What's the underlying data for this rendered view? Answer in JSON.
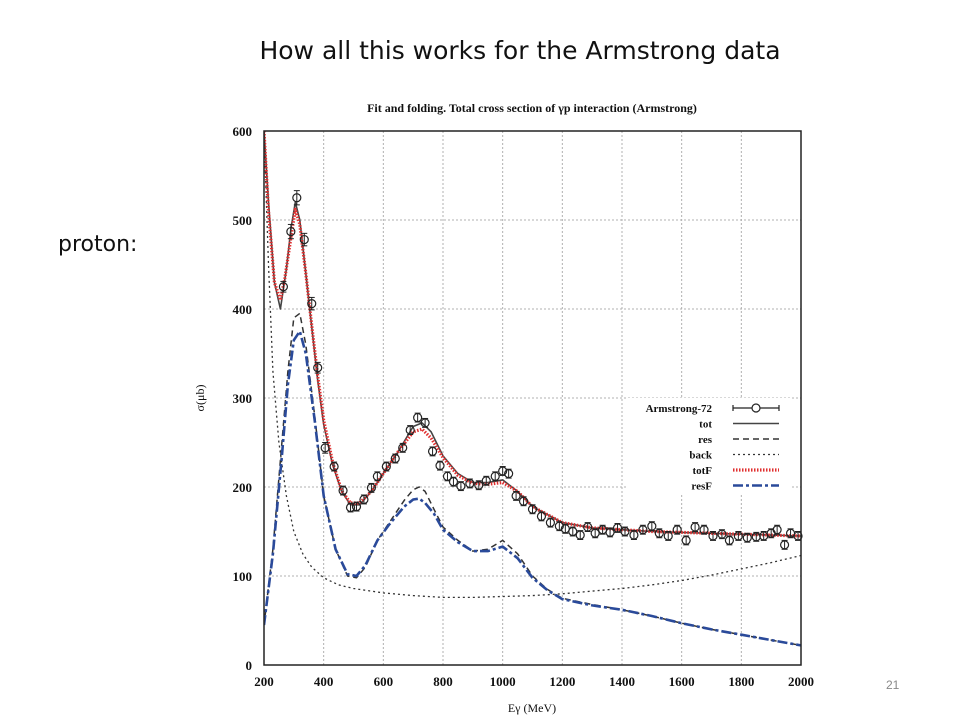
{
  "slide": {
    "title": "How all this works for the Armstrong data",
    "side_label": "proton:",
    "page_number": "21"
  },
  "chart_data": {
    "type": "line",
    "title": "Fit and folding. Total cross section of γp interaction (Armstrong)",
    "xlabel": "Eγ (MeV)",
    "ylabel": "σ(μb)",
    "xlim": [
      200,
      2000
    ],
    "ylim": [
      0,
      600
    ],
    "xticks": [
      200,
      400,
      600,
      800,
      1000,
      1200,
      1400,
      1600,
      1800,
      2000
    ],
    "yticks": [
      0,
      100,
      200,
      300,
      400,
      500,
      600
    ],
    "grid": true,
    "legend_position": "right",
    "series": [
      {
        "name": "Armstrong-72",
        "style": "points",
        "color": "#222222",
        "x": [
          265,
          290,
          310,
          335,
          360,
          380,
          405,
          435,
          465,
          490,
          510,
          535,
          560,
          580,
          610,
          640,
          665,
          690,
          715,
          740,
          765,
          790,
          815,
          835,
          860,
          890,
          920,
          945,
          975,
          1000,
          1020,
          1045,
          1070,
          1100,
          1130,
          1160,
          1190,
          1210,
          1235,
          1260,
          1285,
          1310,
          1335,
          1360,
          1385,
          1410,
          1440,
          1470,
          1500,
          1525,
          1555,
          1585,
          1615,
          1645,
          1675,
          1705,
          1735,
          1760,
          1790,
          1820,
          1850,
          1875,
          1900,
          1920,
          1945,
          1965,
          1990
        ],
        "y": [
          425,
          487,
          525,
          478,
          406,
          334,
          244,
          223,
          196,
          177,
          178,
          186,
          199,
          212,
          223,
          232,
          244,
          264,
          278,
          272,
          240,
          224,
          212,
          206,
          201,
          204,
          202,
          207,
          212,
          218,
          215,
          190,
          184,
          175,
          167,
          160,
          156,
          153,
          150,
          146,
          155,
          148,
          152,
          149,
          154,
          150,
          146,
          152,
          156,
          148,
          145,
          152,
          140,
          155,
          152,
          145,
          147,
          140,
          145,
          143,
          144,
          145,
          148,
          152,
          135,
          148,
          145
        ],
        "yerr": [
          6,
          8,
          8,
          7,
          7,
          6,
          6,
          5,
          5,
          5,
          5,
          5,
          5,
          5,
          5,
          5,
          5,
          5,
          5,
          5,
          5,
          5,
          5,
          5,
          5,
          5,
          5,
          5,
          5,
          5,
          5,
          5,
          5,
          5,
          5,
          5,
          5,
          5,
          5,
          5,
          5,
          5,
          5,
          5,
          5,
          5,
          5,
          5,
          5,
          5,
          5,
          5,
          5,
          5,
          5,
          5,
          5,
          5,
          5,
          5,
          5,
          5,
          5,
          5,
          5,
          5,
          5
        ]
      },
      {
        "name": "tot",
        "style": "solid",
        "color": "#444444",
        "x": [
          200,
          215,
          235,
          255,
          275,
          290,
          305,
          320,
          340,
          360,
          380,
          400,
          430,
          460,
          490,
          520,
          560,
          600,
          650,
          700,
          730,
          760,
          800,
          850,
          900,
          950,
          1000,
          1050,
          1100,
          1200,
          1300,
          1400,
          1500,
          1600,
          1700,
          1800,
          1900,
          2000
        ],
        "y": [
          600,
          520,
          430,
          400,
          445,
          490,
          520,
          500,
          440,
          380,
          320,
          270,
          225,
          195,
          180,
          180,
          195,
          215,
          240,
          268,
          272,
          262,
          235,
          215,
          205,
          205,
          208,
          195,
          178,
          160,
          154,
          152,
          150,
          149,
          148,
          147,
          146,
          145
        ]
      },
      {
        "name": "res",
        "style": "dashed",
        "color": "#333333",
        "x": [
          200,
          230,
          260,
          280,
          300,
          320,
          340,
          370,
          400,
          440,
          480,
          510,
          540,
          580,
          620,
          670,
          700,
          720,
          740,
          770,
          800,
          850,
          900,
          950,
          1000,
          1050,
          1100,
          1150,
          1200,
          1300,
          1400,
          1500,
          1600,
          1700,
          1800,
          1900,
          2000
        ],
        "y": [
          45,
          130,
          250,
          330,
          390,
          395,
          360,
          280,
          190,
          130,
          100,
          98,
          110,
          140,
          160,
          185,
          197,
          200,
          195,
          175,
          155,
          140,
          128,
          130,
          140,
          125,
          100,
          85,
          75,
          68,
          62,
          55,
          47,
          40,
          34,
          28,
          22
        ]
      },
      {
        "name": "back",
        "style": "dotted",
        "color": "#333333",
        "x": [
          200,
          215,
          230,
          250,
          275,
          300,
          330,
          360,
          400,
          450,
          500,
          600,
          700,
          800,
          900,
          1000,
          1100,
          1200,
          1300,
          1400,
          1500,
          1600,
          1700,
          1800,
          1900,
          2000
        ],
        "y": [
          600,
          450,
          330,
          250,
          190,
          150,
          125,
          110,
          98,
          90,
          86,
          81,
          78,
          76,
          76,
          77,
          78,
          80,
          83,
          86,
          90,
          95,
          101,
          108,
          115,
          123
        ]
      },
      {
        "name": "totF",
        "style": "dotted-thick",
        "color": "#e03030",
        "x": [
          200,
          215,
          235,
          255,
          270,
          290,
          305,
          320,
          340,
          360,
          380,
          400,
          430,
          460,
          490,
          520,
          560,
          600,
          650,
          700,
          730,
          760,
          800,
          850,
          900,
          950,
          1000,
          1050,
          1100,
          1200,
          1300,
          1400,
          1500,
          1600,
          1700,
          1800,
          1900,
          2000
        ],
        "y": [
          600,
          510,
          430,
          410,
          435,
          480,
          512,
          495,
          440,
          382,
          325,
          275,
          228,
          196,
          182,
          182,
          195,
          215,
          240,
          262,
          265,
          255,
          233,
          213,
          204,
          203,
          205,
          195,
          178,
          160,
          154,
          152,
          150,
          149,
          148,
          147,
          146,
          145
        ]
      },
      {
        "name": "resF",
        "style": "dashdot",
        "color": "#2a4a9a",
        "x": [
          200,
          230,
          260,
          280,
          300,
          320,
          340,
          370,
          400,
          440,
          480,
          510,
          540,
          580,
          620,
          670,
          700,
          720,
          740,
          770,
          800,
          850,
          900,
          950,
          1000,
          1050,
          1100,
          1150,
          1200,
          1300,
          1400,
          1500,
          1600,
          1700,
          1800,
          1900,
          2000
        ],
        "y": [
          45,
          125,
          235,
          315,
          365,
          375,
          350,
          275,
          190,
          130,
          102,
          100,
          112,
          140,
          158,
          178,
          186,
          187,
          182,
          170,
          152,
          138,
          128,
          128,
          133,
          120,
          98,
          84,
          74,
          67,
          62,
          55,
          47,
          40,
          34,
          28,
          22
        ]
      }
    ]
  }
}
